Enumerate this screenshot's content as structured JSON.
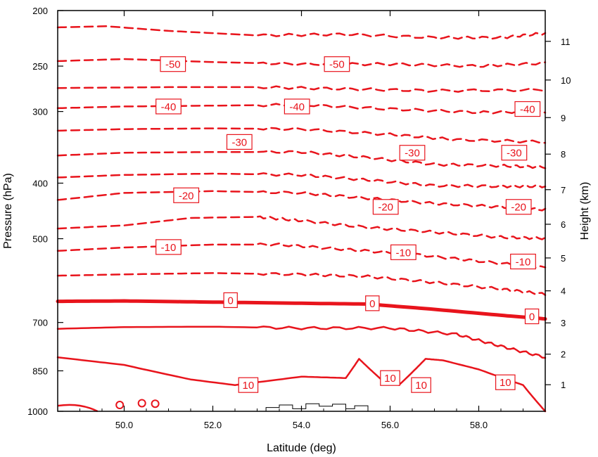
{
  "chart_data": {
    "type": "contour",
    "xlabel": "Latitude (deg)",
    "ylabel": "Pressure (hPa)",
    "y2label": "Height (km)",
    "xlim": [
      48.5,
      59.5
    ],
    "ylim_pressure": [
      1000,
      200
    ],
    "x_ticks": [
      50.0,
      52.0,
      54.0,
      56.0,
      58.0
    ],
    "x_tick_labels": [
      "50.0",
      "52.0",
      "54.0",
      "56.0",
      "58.0"
    ],
    "y_ticks": [
      200,
      250,
      300,
      400,
      500,
      700,
      850,
      1000
    ],
    "y_tick_labels": [
      "200",
      "250",
      "300",
      "400",
      "500",
      "700",
      "850",
      "1000"
    ],
    "y2_ticks_km": [
      1,
      2,
      3,
      4,
      5,
      6,
      7,
      8,
      9,
      10,
      11
    ],
    "y2_tick_labels": [
      "1",
      "2",
      "3",
      "4",
      "5",
      "6",
      "7",
      "8",
      "9",
      "10",
      "11"
    ],
    "line_color": "#e8141c",
    "terrain_color": "#000000",
    "contours": [
      {
        "level": -55,
        "style": "dashed",
        "points": [
          [
            48.5,
            214
          ],
          [
            49.6,
            213
          ],
          [
            51,
            217
          ],
          [
            53,
            221
          ],
          [
            55,
            220
          ],
          [
            57,
            223
          ],
          [
            58.5,
            223
          ],
          [
            59.5,
            219
          ]
        ]
      },
      {
        "level": -50,
        "style": "dashed",
        "points": [
          [
            48.5,
            245
          ],
          [
            50,
            243
          ],
          [
            52,
            246
          ],
          [
            54,
            248
          ],
          [
            56,
            248
          ],
          [
            58,
            250
          ],
          [
            59.5,
            247
          ]
        ]
      },
      {
        "level": -45,
        "style": "dashed",
        "points": [
          [
            48.5,
            273
          ],
          [
            51,
            272
          ],
          [
            53,
            272
          ],
          [
            55,
            274
          ],
          [
            57,
            276
          ],
          [
            59.5,
            275
          ]
        ]
      },
      {
        "level": -40,
        "style": "dashed",
        "points": [
          [
            48.5,
            296
          ],
          [
            50,
            294
          ],
          [
            52,
            293
          ],
          [
            54,
            292
          ],
          [
            56,
            297
          ],
          [
            58,
            301
          ],
          [
            59.5,
            300
          ]
        ]
      },
      {
        "level": -35,
        "style": "dashed",
        "points": [
          [
            48.5,
            324
          ],
          [
            50,
            322
          ],
          [
            52,
            321
          ],
          [
            54,
            322
          ],
          [
            56,
            329
          ],
          [
            57.5,
            336
          ],
          [
            59.5,
            339
          ]
        ]
      },
      {
        "level": -30,
        "style": "dashed",
        "points": [
          [
            48.5,
            358
          ],
          [
            50,
            354
          ],
          [
            52,
            353
          ],
          [
            54,
            353
          ],
          [
            55.5,
            361
          ],
          [
            57,
            371
          ],
          [
            58.5,
            373
          ],
          [
            59.5,
            375
          ]
        ]
      },
      {
        "level": -25,
        "style": "dashed",
        "points": [
          [
            48.5,
            391
          ],
          [
            50,
            387
          ],
          [
            52,
            385
          ],
          [
            54,
            387
          ],
          [
            55.5,
            395
          ],
          [
            57,
            404
          ],
          [
            58.5,
            405
          ],
          [
            59.5,
            405
          ]
        ]
      },
      {
        "level": -20,
        "style": "dashed",
        "points": [
          [
            48.5,
            428
          ],
          [
            50,
            416
          ],
          [
            52,
            413
          ],
          [
            54,
            416
          ],
          [
            55.5,
            425
          ],
          [
            57,
            434
          ],
          [
            58.5,
            440
          ],
          [
            59.5,
            445
          ]
        ]
      },
      {
        "level": -15,
        "style": "dashed",
        "points": [
          [
            48.5,
            480
          ],
          [
            50,
            474
          ],
          [
            51.5,
            460
          ],
          [
            53,
            458
          ],
          [
            54,
            465
          ],
          [
            55.5,
            478
          ],
          [
            57,
            487
          ],
          [
            58.5,
            497
          ],
          [
            59.5,
            499
          ]
        ]
      },
      {
        "level": -10,
        "style": "dashed",
        "points": [
          [
            48.5,
            525
          ],
          [
            50,
            518
          ],
          [
            52,
            512
          ],
          [
            53.5,
            512
          ],
          [
            55,
            522
          ],
          [
            56.5,
            532
          ],
          [
            58,
            547
          ],
          [
            59.5,
            562
          ]
        ]
      },
      {
        "level": -5,
        "style": "dashed",
        "points": [
          [
            48.5,
            580
          ],
          [
            50,
            577
          ],
          [
            52,
            574
          ],
          [
            54,
            577
          ],
          [
            55.5,
            582
          ],
          [
            57,
            596
          ],
          [
            58.5,
            612
          ],
          [
            59.5,
            625
          ]
        ]
      },
      {
        "level": 0,
        "style": "bold",
        "points": [
          [
            48.5,
            643
          ],
          [
            50,
            642
          ],
          [
            52,
            645
          ],
          [
            54,
            648
          ],
          [
            55.5,
            650
          ],
          [
            57,
            664
          ],
          [
            58.5,
            680
          ],
          [
            59.5,
            690
          ]
        ]
      },
      {
        "level": 5,
        "style": "solid",
        "points": [
          [
            48.5,
            718
          ],
          [
            50,
            713
          ],
          [
            52,
            712
          ],
          [
            54,
            716
          ],
          [
            56,
            716
          ],
          [
            57.5,
            734
          ],
          [
            58.5,
            770
          ],
          [
            59.5,
            805
          ]
        ]
      },
      {
        "level": 10,
        "style": "solid",
        "points": [
          [
            48.5,
            805
          ],
          [
            50,
            830
          ],
          [
            51.5,
            880
          ],
          [
            52.5,
            900
          ],
          [
            54,
            870
          ],
          [
            55,
            875
          ],
          [
            55.3,
            810
          ],
          [
            55.8,
            880
          ],
          [
            56.2,
            900
          ],
          [
            56.8,
            810
          ],
          [
            57.2,
            815
          ],
          [
            58,
            845
          ],
          [
            59,
            900
          ],
          [
            59.5,
            1000
          ]
        ]
      }
    ],
    "contour_labels": [
      {
        "text": "-50",
        "x": 51.1,
        "p": 248
      },
      {
        "text": "-50",
        "x": 54.8,
        "p": 248
      },
      {
        "text": "-40",
        "x": 51.0,
        "p": 294
      },
      {
        "text": "-40",
        "x": 53.9,
        "p": 294
      },
      {
        "text": "-40",
        "x": 59.1,
        "p": 297
      },
      {
        "text": "-30",
        "x": 52.6,
        "p": 339
      },
      {
        "text": "-30",
        "x": 56.5,
        "p": 354
      },
      {
        "text": "-30",
        "x": 58.8,
        "p": 354
      },
      {
        "text": "-20",
        "x": 51.4,
        "p": 420
      },
      {
        "text": "-20",
        "x": 55.9,
        "p": 440
      },
      {
        "text": "-20",
        "x": 58.9,
        "p": 440
      },
      {
        "text": "-10",
        "x": 51.0,
        "p": 517
      },
      {
        "text": "-10",
        "x": 56.3,
        "p": 528
      },
      {
        "text": "-10",
        "x": 59.0,
        "p": 548
      },
      {
        "text": "0",
        "x": 52.4,
        "p": 640
      },
      {
        "text": "0",
        "x": 55.6,
        "p": 648
      },
      {
        "text": "0",
        "x": 59.2,
        "p": 683
      },
      {
        "text": "10",
        "x": 52.8,
        "p": 900
      },
      {
        "text": "10",
        "x": 56.0,
        "p": 875
      },
      {
        "text": "10",
        "x": 56.7,
        "p": 900
      },
      {
        "text": "10",
        "x": 58.6,
        "p": 890
      }
    ]
  }
}
